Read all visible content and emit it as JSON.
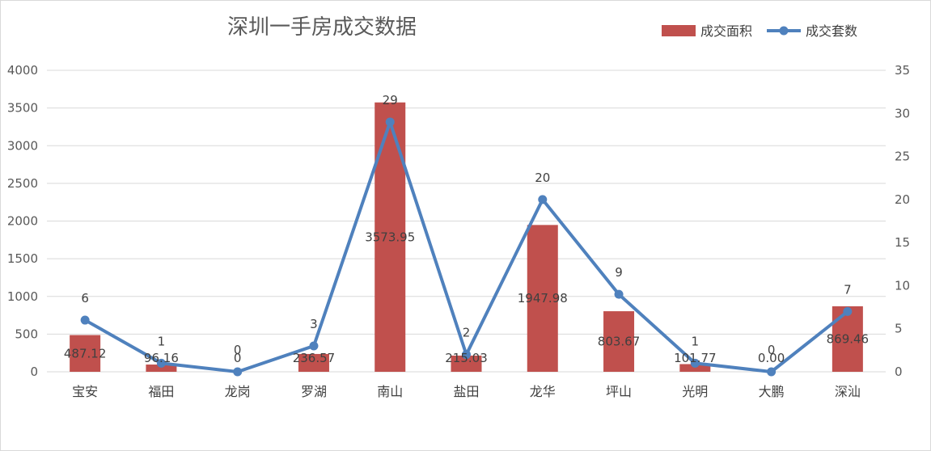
{
  "chart_data": {
    "type": "bar",
    "title": "深圳一手房成交数据",
    "categories": [
      "宝安",
      "福田",
      "龙岗",
      "罗湖",
      "南山",
      "盐田",
      "龙华",
      "坪山",
      "光明",
      "大鹏",
      "深汕"
    ],
    "series": [
      {
        "name": "成交面积",
        "type": "bar",
        "axis": "left",
        "color": "#c0504d",
        "values": [
          487.12,
          96.16,
          0,
          236.57,
          3573.95,
          215.03,
          1947.98,
          803.67,
          101.77,
          0.0,
          869.46
        ],
        "labels": [
          "487.12",
          "96.16",
          "0",
          "236.57",
          "3573.95",
          "215.03",
          "1947.98",
          "803.67",
          "101.77",
          "0.00",
          "869.46"
        ]
      },
      {
        "name": "成交套数",
        "type": "line",
        "axis": "right",
        "color": "#4f81bd",
        "values": [
          6,
          1,
          0,
          3,
          29,
          2,
          20,
          9,
          1,
          0,
          7
        ],
        "labels": [
          "6",
          "1",
          "0",
          "3",
          "29",
          "2",
          "20",
          "9",
          "1",
          "0",
          "7"
        ]
      }
    ],
    "y_left": {
      "min": 0,
      "max": 4000,
      "ticks": [
        "0",
        "500",
        "1000",
        "1500",
        "2000",
        "2500",
        "3000",
        "3500",
        "4000"
      ]
    },
    "y_right": {
      "min": 0,
      "max": 35,
      "ticks": [
        "0",
        "5",
        "10",
        "15",
        "20",
        "25",
        "30",
        "35"
      ]
    },
    "grid": true,
    "legend_position": "top-right"
  }
}
